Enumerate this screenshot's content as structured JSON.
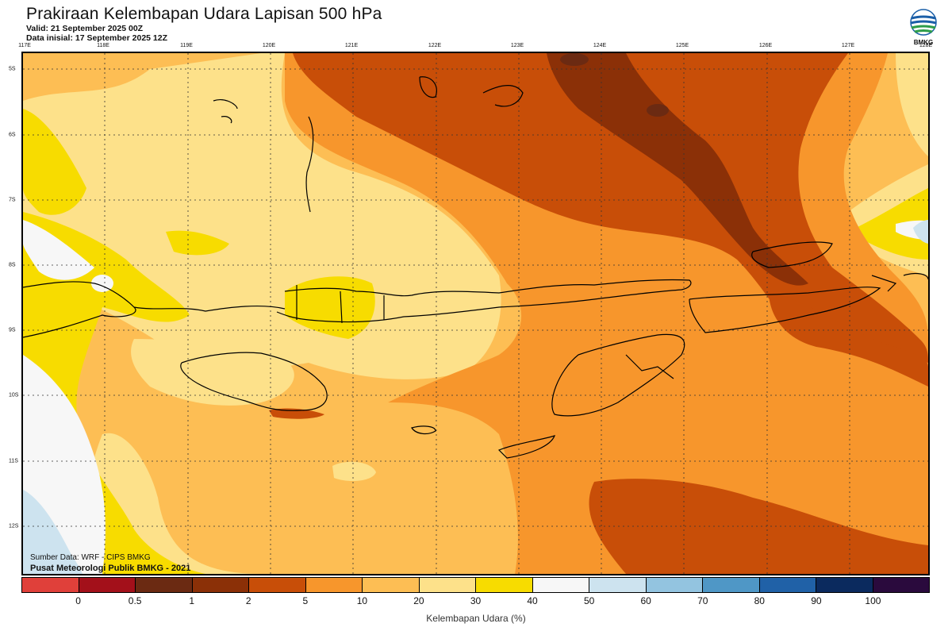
{
  "header": {
    "title": "Prakiraan Kelembapan Udara Lapisan 500 hPa",
    "valid": "Valid: 21 September 2025 00Z",
    "init": "Data inisial: 17 September 2025 12Z"
  },
  "logo": {
    "icon": "bmkg-globe-icon",
    "text": "BMKG"
  },
  "axes": {
    "lon_labels": [
      "117E",
      "118E",
      "119E",
      "120E",
      "121E",
      "122E",
      "123E",
      "124E",
      "125E",
      "126E",
      "127E",
      "128E"
    ],
    "lat_labels": [
      "5S",
      "6S",
      "7S",
      "8S",
      "9S",
      "10S",
      "11S",
      "12S"
    ]
  },
  "credits": {
    "source": "Sumber Data: WRF - CIPS BMKG",
    "org": "Pusat Meteorologi Publik BMKG - 2021"
  },
  "legend": {
    "title": "Kelembapan Udara (%)",
    "ticks": [
      "0",
      "0.5",
      "1",
      "2",
      "5",
      "10",
      "20",
      "30",
      "40",
      "50",
      "60",
      "70",
      "80",
      "90",
      "100"
    ],
    "colors": [
      "#e0403a",
      "#a3101a",
      "#6b2a12",
      "#8b3007",
      "#c84e08",
      "#f7962c",
      "#fdbe54",
      "#fde18a",
      "#f7dc00",
      "#f7f7f7",
      "#cde3ef",
      "#93c4e0",
      "#4f97c6",
      "#2061a7",
      "#0b2a5e",
      "#2a0a3d"
    ]
  }
}
